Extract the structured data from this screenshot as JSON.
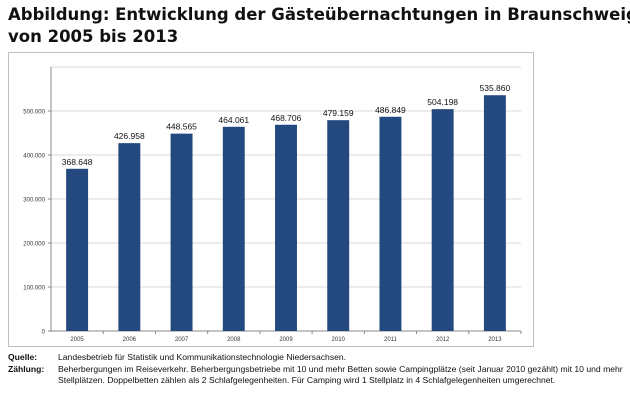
{
  "title_lines": [
    "Abbildung: Entwicklung der Gästeübernachtungen in Braunschweig",
    "von 2005 bis 2013"
  ],
  "chart_data": {
    "type": "bar",
    "categories": [
      "2005",
      "2006",
      "2007",
      "2008",
      "2009",
      "2010",
      "2011",
      "2012",
      "2013"
    ],
    "values": [
      368648,
      426958,
      448565,
      464061,
      468706,
      479159,
      486849,
      504198,
      535860
    ],
    "value_labels": [
      "368.648",
      "426.958",
      "448.565",
      "464.061",
      "468.706",
      "479.159",
      "486.849",
      "504.198",
      "535.860"
    ],
    "ylim": [
      0,
      600000
    ],
    "yticks": [
      0,
      100000,
      200000,
      300000,
      400000,
      500000
    ],
    "ytick_labels": [
      "0",
      "100.000",
      "200.000",
      "300.000",
      "400.000",
      "500.000"
    ],
    "grid": true,
    "bar_color": "#24497f"
  },
  "notes": {
    "source_label": "Quelle:",
    "source_text": "Landesbetrieb für Statistik und Kommunikationstechnologie Niedersachsen.",
    "count_label": "Zählung:",
    "count_text": "Beherbergungen im Reiseverkehr. Beherbergungsbetriebe mit 10 und mehr Betten sowie Campingplätze (seit Januar 2010 gezählt) mit 10 und mehr Stellplätzen. Doppelbetten zählen als 2 Schlafgelegenheiten. Für Camping wird 1 Stellplatz in 4 Schlafgelegenheiten umgerechnet."
  }
}
